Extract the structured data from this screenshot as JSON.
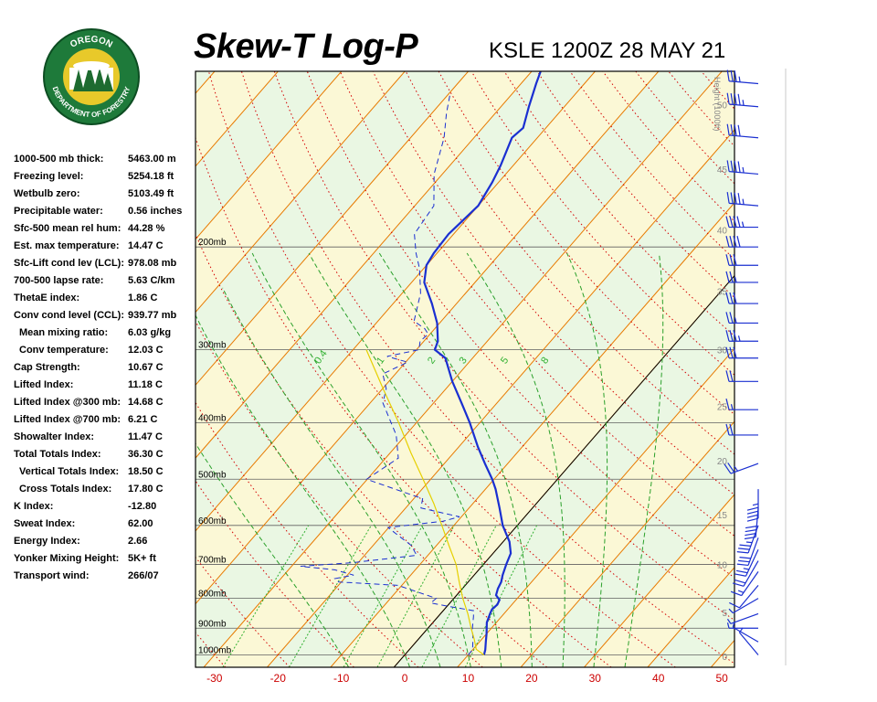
{
  "header": {
    "title": "Skew-T Log-P",
    "station": "KSLE 1200Z 28 MAY 21"
  },
  "logo": {
    "top_text": "OREGON",
    "bottom_text": "DEPARTMENT OF FORESTRY",
    "ring_color": "#1e7a3a",
    "inner_color": "#e8c92a"
  },
  "indices": [
    {
      "label": "1000-500 mb thick:",
      "value": "5463.00 m",
      "indent": false
    },
    {
      "label": "Freezing level:",
      "value": "5254.18 ft",
      "indent": false
    },
    {
      "label": "Wetbulb zero:",
      "value": "5103.49 ft",
      "indent": false
    },
    {
      "label": "Precipitable water:",
      "value": "0.56 inches",
      "indent": false
    },
    {
      "label": "Sfc-500 mean rel hum:",
      "value": "44.28 %",
      "indent": false
    },
    {
      "label": "Est. max temperature:",
      "value": "14.47 C",
      "indent": false
    },
    {
      "label": "Sfc-Lift cond lev (LCL):",
      "value": "978.08 mb",
      "indent": false
    },
    {
      "label": "700-500 lapse rate:",
      "value": "5.63 C/km",
      "indent": false
    },
    {
      "label": "ThetaE index:",
      "value": "1.86 C",
      "indent": false
    },
    {
      "label": "Conv cond level (CCL):",
      "value": "939.77 mb",
      "indent": false
    },
    {
      "label": "Mean mixing ratio:",
      "value": "6.03 g/kg",
      "indent": true
    },
    {
      "label": "Conv temperature:",
      "value": "12.03 C",
      "indent": true
    },
    {
      "label": "Cap Strength:",
      "value": "10.67 C",
      "indent": false
    },
    {
      "label": "Lifted Index:",
      "value": "11.18 C",
      "indent": false
    },
    {
      "label": "Lifted Index @300 mb:",
      "value": "14.68 C",
      "indent": false
    },
    {
      "label": "Lifted Index @700 mb:",
      "value": "6.21 C",
      "indent": false
    },
    {
      "label": "Showalter Index:",
      "value": "11.47 C",
      "indent": false
    },
    {
      "label": "Total Totals Index:",
      "value": "36.30 C",
      "indent": false
    },
    {
      "label": "Vertical Totals Index:",
      "value": "18.50 C",
      "indent": true
    },
    {
      "label": "Cross Totals Index:",
      "value": "17.80 C",
      "indent": true
    },
    {
      "label": "K Index:",
      "value": "-12.80",
      "indent": false
    },
    {
      "label": "Sweat Index:",
      "value": "62.00",
      "indent": false
    },
    {
      "label": "Energy Index:",
      "value": "2.66",
      "indent": false
    },
    {
      "label": "Yonker Mixing Height:",
      "value": "5K+ ft",
      "indent": false
    },
    {
      "label": "Transport wind:",
      "value": "266/07",
      "indent": false
    }
  ],
  "colors": {
    "temperature": "#1a2fd1",
    "dewpoint": "#1a2fd1",
    "parcel": "#e6d000",
    "isotherm": "#e87a00",
    "dry_adiabat": "#d40000",
    "moist_adiabat": "#2aa02a",
    "mixing_ratio": "#30b030",
    "isobar": "#606060",
    "height_label": "#888888",
    "temp_tick": "#cc0000",
    "wind_barb": "#1a2fd1",
    "band_green": "#eaf7e3",
    "band_yellow": "#fbf8d6"
  },
  "chart_data": {
    "type": "skew-t log-p",
    "x_axis": {
      "label": "",
      "unit": "C",
      "range": [
        -33,
        52
      ],
      "ticks": [
        -30,
        -20,
        -10,
        0,
        10,
        20,
        30,
        40,
        50
      ]
    },
    "y_axis": {
      "scale": "log",
      "unit": "mb",
      "range": [
        1050,
        100
      ],
      "isobars": [
        {
          "p": 200,
          "label": "200mb"
        },
        {
          "p": 300,
          "label": "300mb"
        },
        {
          "p": 400,
          "label": "400mb"
        },
        {
          "p": 500,
          "label": "500mb"
        },
        {
          "p": 600,
          "label": "600mb"
        },
        {
          "p": 700,
          "label": "700mb"
        },
        {
          "p": 800,
          "label": "800mb"
        },
        {
          "p": 900,
          "label": "900mb"
        },
        {
          "p": 1000,
          "label": "1000mb"
        }
      ]
    },
    "height_axis": {
      "label": "Height (1000ft)",
      "ticks": [
        {
          "label": "0",
          "p": 1006
        },
        {
          "label": "5",
          "p": 845
        },
        {
          "label": "10",
          "p": 700
        },
        {
          "label": "15",
          "p": 575
        },
        {
          "label": "20",
          "p": 465
        },
        {
          "label": "25",
          "p": 375
        },
        {
          "label": "30",
          "p": 300
        },
        {
          "label": "35",
          "p": 238
        },
        {
          "label": "40",
          "p": 187
        },
        {
          "label": "45",
          "p": 147
        },
        {
          "label": "50",
          "p": 114
        }
      ]
    },
    "mixing_ratio_labels": [
      {
        "label": "0.4",
        "w": 0.4
      },
      {
        "label": "1",
        "w": 1
      },
      {
        "label": "2",
        "w": 2
      },
      {
        "label": "3",
        "w": 3
      },
      {
        "label": "5",
        "w": 5
      },
      {
        "label": "8",
        "w": 8
      }
    ],
    "series": [
      {
        "kind": "temperature",
        "points": [
          {
            "p": 1000,
            "t": 12.5
          },
          {
            "p": 980,
            "t": 12.0
          },
          {
            "p": 950,
            "t": 11.0
          },
          {
            "p": 920,
            "t": 10.0
          },
          {
            "p": 880,
            "t": 8.5
          },
          {
            "p": 850,
            "t": 7.8
          },
          {
            "p": 835,
            "t": 7.5
          },
          {
            "p": 820,
            "t": 7.7
          },
          {
            "p": 805,
            "t": 7.4
          },
          {
            "p": 790,
            "t": 6.2
          },
          {
            "p": 770,
            "t": 5.6
          },
          {
            "p": 750,
            "t": 5.2
          },
          {
            "p": 730,
            "t": 4.5
          },
          {
            "p": 700,
            "t": 3.6
          },
          {
            "p": 670,
            "t": 2.8
          },
          {
            "p": 640,
            "t": 1.0
          },
          {
            "p": 600,
            "t": -2.3
          },
          {
            "p": 560,
            "t": -5.2
          },
          {
            "p": 520,
            "t": -8.4
          },
          {
            "p": 500,
            "t": -10.3
          },
          {
            "p": 470,
            "t": -13.6
          },
          {
            "p": 440,
            "t": -17.0
          },
          {
            "p": 400,
            "t": -21.6
          },
          {
            "p": 370,
            "t": -25.6
          },
          {
            "p": 340,
            "t": -30.0
          },
          {
            "p": 310,
            "t": -34.3
          },
          {
            "p": 300,
            "t": -37.1
          },
          {
            "p": 290,
            "t": -37.8
          },
          {
            "p": 270,
            "t": -40.4
          },
          {
            "p": 250,
            "t": -43.9
          },
          {
            "p": 230,
            "t": -48.0
          },
          {
            "p": 215,
            "t": -50.0
          },
          {
            "p": 205,
            "t": -50.5
          },
          {
            "p": 190,
            "t": -50.8
          },
          {
            "p": 170,
            "t": -50.0
          },
          {
            "p": 155,
            "t": -51.0
          },
          {
            "p": 145,
            "t": -52.0
          },
          {
            "p": 130,
            "t": -54.0
          },
          {
            "p": 125,
            "t": -53.6
          },
          {
            "p": 115,
            "t": -55.6
          },
          {
            "p": 105,
            "t": -57.6
          },
          {
            "p": 100,
            "t": -58.6
          }
        ]
      },
      {
        "kind": "dewpoint",
        "points": [
          {
            "p": 1000,
            "t": 10.0
          },
          {
            "p": 980,
            "t": 10.0
          },
          {
            "p": 940,
            "t": 8.6
          },
          {
            "p": 900,
            "t": 7.0
          },
          {
            "p": 860,
            "t": 5.6
          },
          {
            "p": 840,
            "t": 4.8
          },
          {
            "p": 825,
            "t": 0.0
          },
          {
            "p": 815,
            "t": -3.0
          },
          {
            "p": 800,
            "t": -2.8
          },
          {
            "p": 760,
            "t": -10.6
          },
          {
            "p": 750,
            "t": -20.4
          },
          {
            "p": 740,
            "t": -21.5
          },
          {
            "p": 730,
            "t": -19.0
          },
          {
            "p": 715,
            "t": -22.7
          },
          {
            "p": 705,
            "t": -28.6
          },
          {
            "p": 695,
            "t": -20.9
          },
          {
            "p": 675,
            "t": -11.8
          },
          {
            "p": 650,
            "t": -13.9
          },
          {
            "p": 620,
            "t": -18.0
          },
          {
            "p": 605,
            "t": -20.1
          },
          {
            "p": 590,
            "t": -12.3
          },
          {
            "p": 580,
            "t": -10.3
          },
          {
            "p": 560,
            "t": -17.6
          },
          {
            "p": 540,
            "t": -18.6
          },
          {
            "p": 500,
            "t": -30.1
          },
          {
            "p": 460,
            "t": -28.0
          },
          {
            "p": 420,
            "t": -31.5
          },
          {
            "p": 400,
            "t": -34.0
          },
          {
            "p": 370,
            "t": -38.0
          },
          {
            "p": 350,
            "t": -39.4
          },
          {
            "p": 330,
            "t": -42.0
          },
          {
            "p": 315,
            "t": -39.7
          },
          {
            "p": 308,
            "t": -43.7
          },
          {
            "p": 300,
            "t": -39.6
          },
          {
            "p": 290,
            "t": -40.6
          },
          {
            "p": 282,
            "t": -40.3
          },
          {
            "p": 276,
            "t": -41.6
          },
          {
            "p": 268,
            "t": -44.3
          },
          {
            "p": 240,
            "t": -47.1
          },
          {
            "p": 218,
            "t": -50.6
          },
          {
            "p": 205,
            "t": -53.3
          },
          {
            "p": 190,
            "t": -56.2
          },
          {
            "p": 170,
            "t": -57.0
          },
          {
            "p": 150,
            "t": -61.3
          },
          {
            "p": 130,
            "t": -64.7
          },
          {
            "p": 118,
            "t": -67.7
          },
          {
            "p": 110,
            "t": -69.6
          }
        ]
      },
      {
        "kind": "parcel",
        "points": [
          {
            "p": 1000,
            "t": 12.5
          },
          {
            "p": 978,
            "t": 10.5
          },
          {
            "p": 940,
            "t": 8.8
          },
          {
            "p": 900,
            "t": 6.8
          },
          {
            "p": 850,
            "t": 4.3
          },
          {
            "p": 800,
            "t": 1.4
          },
          {
            "p": 750,
            "t": -1.4
          },
          {
            "p": 700,
            "t": -4.3
          },
          {
            "p": 650,
            "t": -8.0
          },
          {
            "p": 600,
            "t": -11.9
          },
          {
            "p": 550,
            "t": -16.2
          },
          {
            "p": 500,
            "t": -21.2
          },
          {
            "p": 450,
            "t": -26.8
          },
          {
            "p": 400,
            "t": -32.8
          },
          {
            "p": 350,
            "t": -39.9
          },
          {
            "p": 300,
            "t": -47.9
          }
        ]
      }
    ],
    "wind_barbs": [
      {
        "p": 1000,
        "dir": 320,
        "spd": 5
      },
      {
        "p": 950,
        "dir": 300,
        "spd": 5
      },
      {
        "p": 900,
        "dir": 270,
        "spd": 5
      },
      {
        "p": 850,
        "dir": 250,
        "spd": 5
      },
      {
        "p": 800,
        "dir": 240,
        "spd": 5
      },
      {
        "p": 760,
        "dir": 220,
        "spd": 10
      },
      {
        "p": 720,
        "dir": 215,
        "spd": 15
      },
      {
        "p": 690,
        "dir": 210,
        "spd": 20
      },
      {
        "p": 660,
        "dir": 205,
        "spd": 25
      },
      {
        "p": 630,
        "dir": 200,
        "spd": 30
      },
      {
        "p": 600,
        "dir": 200,
        "spd": 35
      },
      {
        "p": 560,
        "dir": 185,
        "spd": 40
      },
      {
        "p": 520,
        "dir": 180,
        "spd": 45
      },
      {
        "p": 470,
        "dir": 250,
        "spd": 25
      },
      {
        "p": 420,
        "dir": 270,
        "spd": 20
      },
      {
        "p": 380,
        "dir": 270,
        "spd": 15
      },
      {
        "p": 340,
        "dir": 270,
        "spd": 20
      },
      {
        "p": 310,
        "dir": 270,
        "spd": 30
      },
      {
        "p": 290,
        "dir": 270,
        "spd": 35
      },
      {
        "p": 270,
        "dir": 270,
        "spd": 25
      },
      {
        "p": 250,
        "dir": 270,
        "spd": 30
      },
      {
        "p": 230,
        "dir": 270,
        "spd": 25
      },
      {
        "p": 215,
        "dir": 270,
        "spd": 30
      },
      {
        "p": 200,
        "dir": 270,
        "spd": 40
      },
      {
        "p": 185,
        "dir": 270,
        "spd": 45
      },
      {
        "p": 170,
        "dir": 275,
        "spd": 45
      },
      {
        "p": 150,
        "dir": 275,
        "spd": 45
      },
      {
        "p": 130,
        "dir": 275,
        "spd": 40
      },
      {
        "p": 115,
        "dir": 275,
        "spd": 45
      },
      {
        "p": 105,
        "dir": 275,
        "spd": 35
      }
    ]
  }
}
